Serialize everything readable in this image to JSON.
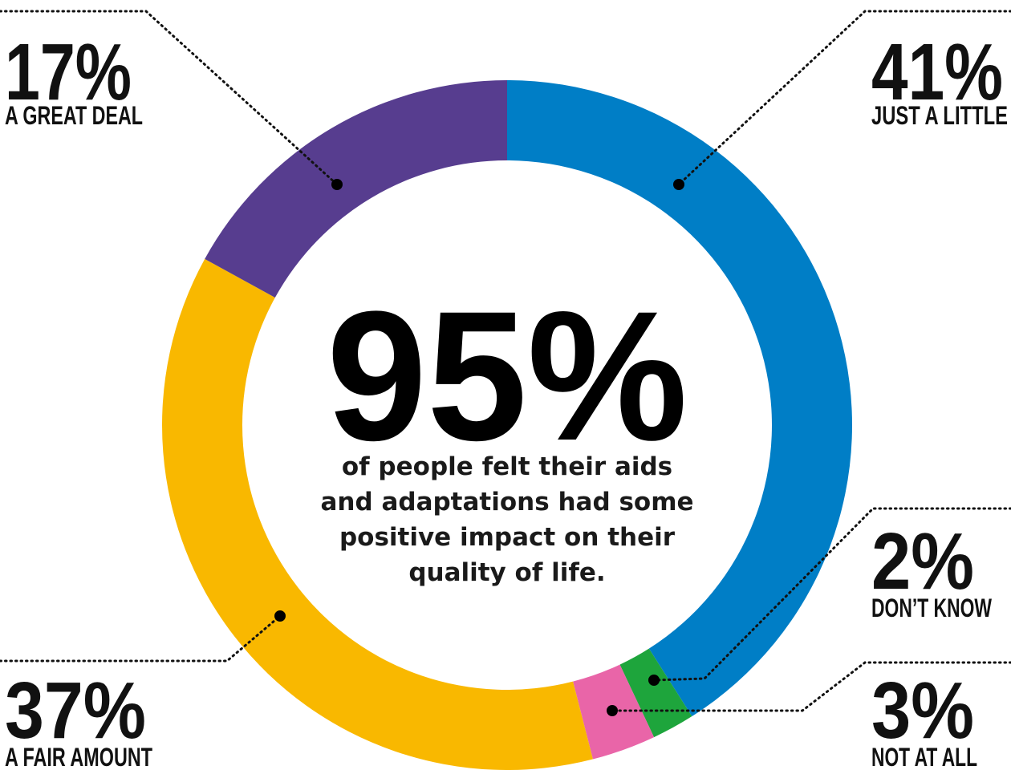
{
  "chart_data": {
    "type": "pie",
    "categories": [
      "Just a little",
      "Don't know",
      "Not at all",
      "A fair amount",
      "A great deal"
    ],
    "series": [
      {
        "values": [
          41,
          2,
          3,
          37,
          17
        ],
        "colors": [
          "#007ec6",
          "#1ea53c",
          "#e965a8",
          "#f9b800",
          "#573d8f"
        ]
      }
    ],
    "style": "donut",
    "start_angle_deg": 0,
    "direction": "clockwise"
  },
  "center": {
    "headline": "95%",
    "lines": [
      "of people felt their aids",
      "and adaptations had some",
      "positive impact on their",
      "quality of life."
    ]
  },
  "callouts": {
    "just_a_little": {
      "pct": "41%",
      "label": "JUST A LITTLE"
    },
    "dont_know": {
      "pct": "2%",
      "label": "DON’T KNOW"
    },
    "not_at_all": {
      "pct": "3%",
      "label": "NOT AT ALL"
    },
    "a_fair_amount": {
      "pct": "37%",
      "label": "A FAIR AMOUNT"
    },
    "a_great_deal": {
      "pct": "17%",
      "label": "A GREAT DEAL"
    }
  }
}
